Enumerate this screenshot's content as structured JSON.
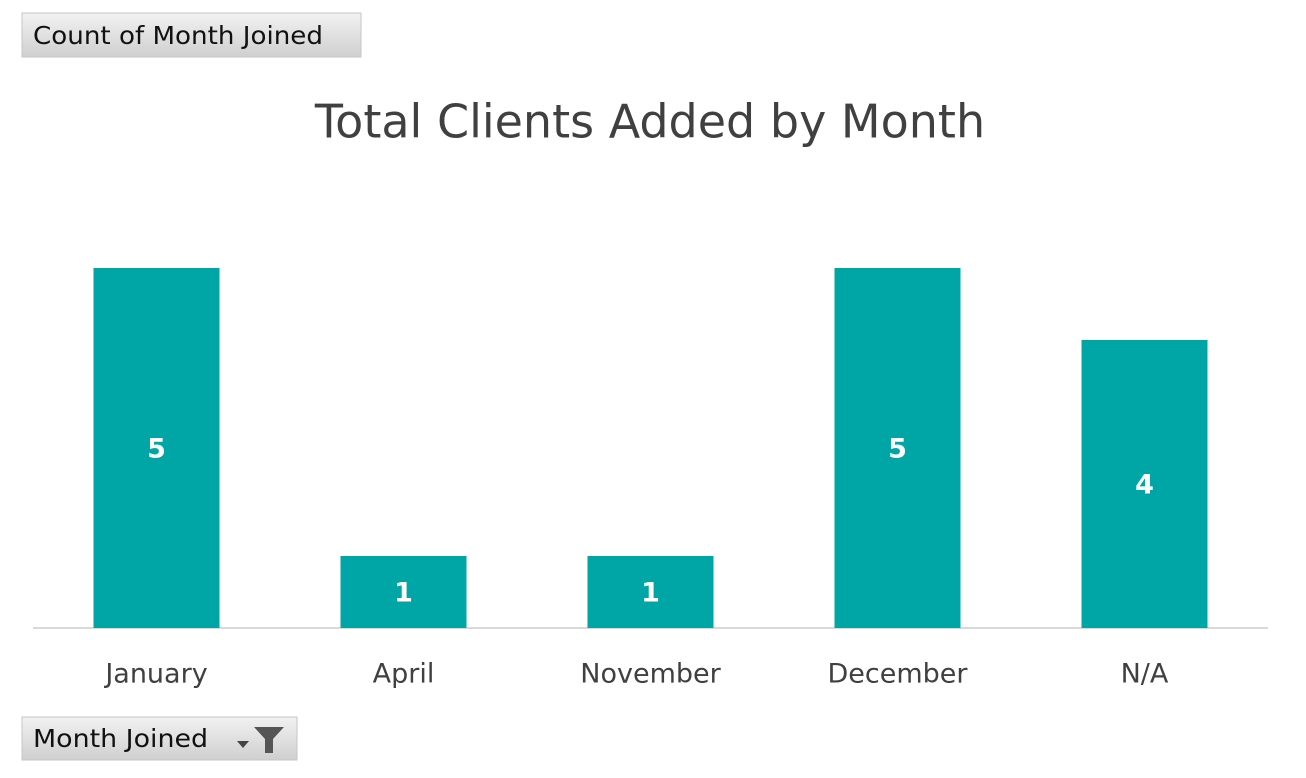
{
  "chart_data": {
    "type": "bar",
    "title": "Total Clients Added by Month",
    "value_field": "Count of Month Joined",
    "axis_field": "Month Joined",
    "categories": [
      "January",
      "April",
      "November",
      "December",
      "N/A"
    ],
    "values": [
      5,
      1,
      1,
      5,
      4
    ],
    "color": "#00a5a5",
    "data_labels": true
  }
}
